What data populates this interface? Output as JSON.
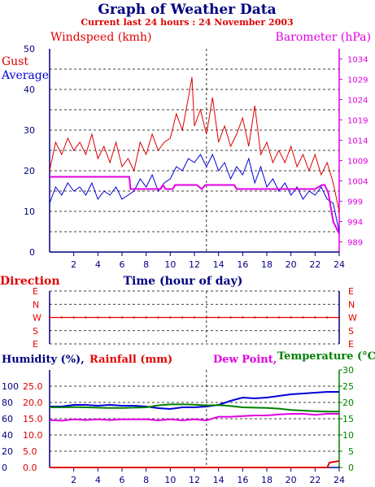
{
  "colors": {
    "navy": "#000080",
    "red": "#e00000",
    "blue": "#0000d8",
    "magenta": "#e000e0",
    "green": "#008000",
    "black": "#000000"
  },
  "header": {
    "title": "Graph of Weather Data",
    "subtitle": "Current last 24 hours : 24 November 2003"
  },
  "chart_data": [
    {
      "type": "line",
      "xlabel": "Time (hour of day)",
      "xlim": [
        0,
        24
      ],
      "x_ticks": [
        2,
        4,
        6,
        8,
        10,
        12,
        14,
        16,
        18,
        20,
        22,
        24
      ],
      "left_axis_title": "Windspeed (kmh)",
      "right_axis_title": "Barometer (hPa)",
      "left_ylim": [
        0,
        50
      ],
      "left_ticks": [
        0,
        10,
        20,
        30,
        40,
        50
      ],
      "right_ylim": [
        986.5,
        1036.5
      ],
      "right_ticks": [
        989,
        994,
        999,
        1004,
        1009,
        1014,
        1019,
        1024,
        1029,
        1034
      ],
      "legend": [
        "Gust",
        "Average"
      ],
      "grid": true,
      "series": [
        {
          "name": "Gust",
          "axis": "left",
          "x": [
            0.0,
            0.5,
            1.0,
            1.5,
            2.0,
            2.5,
            3.0,
            3.5,
            4.0,
            4.5,
            5.0,
            5.5,
            6.0,
            6.5,
            7.0,
            7.5,
            8.0,
            8.5,
            9.0,
            9.5,
            10.0,
            10.5,
            11.0,
            11.5,
            11.8,
            12.0,
            12.5,
            13.0,
            13.5,
            14.0,
            14.5,
            15.0,
            15.5,
            16.0,
            16.5,
            17.0,
            17.5,
            18.0,
            18.5,
            19.0,
            19.5,
            20.0,
            20.5,
            21.0,
            21.5,
            22.0,
            22.5,
            23.0,
            23.5,
            24.0
          ],
          "values": [
            20,
            27,
            24,
            28,
            25,
            27,
            24,
            29,
            23,
            26,
            22,
            27,
            21,
            23,
            20,
            27,
            24,
            29,
            25,
            27,
            28,
            34,
            30,
            38,
            43,
            31,
            35,
            29,
            38,
            27,
            31,
            26,
            29,
            33,
            26,
            36,
            24,
            27,
            22,
            25,
            22,
            26,
            21,
            24,
            20,
            24,
            19,
            22,
            17,
            10
          ]
        },
        {
          "name": "Average",
          "axis": "left",
          "x": [
            0.0,
            0.5,
            1.0,
            1.5,
            2.0,
            2.5,
            3.0,
            3.5,
            4.0,
            4.5,
            5.0,
            5.5,
            6.0,
            6.5,
            7.0,
            7.5,
            8.0,
            8.5,
            9.0,
            9.5,
            10.0,
            10.5,
            11.0,
            11.5,
            12.0,
            12.5,
            13.0,
            13.5,
            14.0,
            14.5,
            15.0,
            15.5,
            16.0,
            16.5,
            17.0,
            17.5,
            18.0,
            18.5,
            19.0,
            19.5,
            20.0,
            20.5,
            21.0,
            21.5,
            22.0,
            22.5,
            23.0,
            23.5,
            24.0
          ],
          "values": [
            12,
            16,
            14,
            17,
            15,
            16,
            14,
            17,
            13,
            15,
            14,
            16,
            13,
            14,
            15,
            18,
            16,
            19,
            15,
            17,
            18,
            21,
            20,
            23,
            22,
            24,
            21,
            24,
            20,
            22,
            18,
            21,
            19,
            23,
            17,
            21,
            16,
            18,
            15,
            17,
            14,
            16,
            13,
            15,
            14,
            16,
            13,
            12,
            5
          ]
        },
        {
          "name": "Barometer",
          "axis": "right",
          "x": [
            0,
            6.6,
            6.7,
            9.2,
            9.4,
            9.6,
            10.2,
            10.4,
            10.6,
            12.2,
            12.6,
            12.9,
            13.0,
            15.3,
            15.5,
            22.0,
            22.6,
            22.8,
            23.1,
            23.5,
            24.0
          ],
          "values": [
            1005,
            1005,
            1002,
            1002,
            1003,
            1002,
            1002,
            1003,
            1003,
            1003,
            1002,
            1003,
            1003,
            1003,
            1002,
            1002,
            1003,
            1003,
            1001,
            994,
            991
          ]
        }
      ]
    },
    {
      "type": "scatter",
      "title": "Direction",
      "xlim": [
        0,
        24
      ],
      "categories": [
        "E",
        "N",
        "W",
        "S",
        "E"
      ],
      "series": [
        {
          "name": "Direction",
          "x": [
            0,
            1,
            2,
            3,
            4,
            5,
            6,
            7,
            8,
            9,
            10,
            11,
            12,
            13,
            14,
            15,
            16,
            17,
            18,
            19,
            20,
            21,
            22,
            23,
            24
          ],
          "values": [
            "W",
            "W",
            "W",
            "W",
            "W",
            "W",
            "W",
            "W",
            "W",
            "W",
            "W",
            "W",
            "W",
            "W",
            "W",
            "W",
            "W",
            "W",
            "W",
            "W",
            "W",
            "W",
            "W",
            "W",
            "W"
          ]
        }
      ]
    },
    {
      "type": "line",
      "xlim": [
        0,
        24
      ],
      "x_ticks": [
        2,
        4,
        6,
        8,
        10,
        12,
        14,
        16,
        18,
        20,
        22,
        24
      ],
      "humidity_title": "Humidity (%),",
      "rainfall_title": "Rainfall (mm)",
      "dewpoint_title": "Dew Point,",
      "temperature_title": "Temperature (°C)",
      "humidity_ticks": [
        0,
        20,
        40,
        60,
        80,
        100
      ],
      "rainfall_ticks": [
        "0.0",
        "5.0",
        "10.0",
        "15.0",
        "20.0",
        "25.0"
      ],
      "temperature_ticks": [
        0,
        5,
        10,
        15,
        20,
        25,
        30
      ],
      "temperature_ylim": [
        0,
        30
      ],
      "grid": true,
      "series": [
        {
          "name": "Humidity",
          "unit": "%",
          "x": [
            0,
            1,
            2,
            3,
            4,
            5,
            6,
            7,
            8,
            9,
            10,
            11,
            12,
            13,
            14,
            15,
            16,
            17,
            18,
            19,
            20,
            21,
            22,
            23,
            24
          ],
          "values": [
            75,
            75,
            77,
            77,
            76,
            77,
            76,
            76,
            75,
            73,
            72,
            74,
            74,
            75,
            77,
            82,
            86,
            85,
            86,
            88,
            90,
            91,
            92,
            93,
            93
          ]
        },
        {
          "name": "Rainfall",
          "unit": "mm",
          "x": [
            0,
            23,
            23.2,
            24
          ],
          "values": [
            0,
            0,
            1.5,
            2.0
          ]
        },
        {
          "name": "Dew Point",
          "unit": "°C",
          "x": [
            0,
            1,
            2,
            3,
            4,
            5,
            6,
            7,
            8,
            9,
            10,
            11,
            12,
            13,
            14,
            15,
            16,
            17,
            18,
            19,
            20,
            21,
            22,
            23,
            24
          ],
          "values": [
            14.6,
            14.4,
            14.8,
            14.6,
            14.8,
            14.6,
            14.8,
            14.8,
            14.8,
            14.5,
            14.8,
            14.5,
            14.8,
            14.5,
            15.6,
            15.6,
            15.8,
            16,
            16,
            16.3,
            16.5,
            16.5,
            16.2,
            16.5,
            16.5
          ]
        },
        {
          "name": "Temperature",
          "unit": "°C",
          "x": [
            0,
            1,
            2,
            3,
            4,
            5,
            6,
            7,
            8,
            9,
            10,
            11,
            12,
            13,
            14,
            15,
            16,
            17,
            18,
            19,
            20,
            21,
            22,
            23,
            24
          ],
          "values": [
            18.5,
            18.5,
            18.6,
            18.5,
            18.4,
            18.3,
            18.3,
            18.4,
            18.5,
            19.1,
            19.4,
            19.4,
            19.3,
            19.1,
            19.2,
            18.9,
            18.5,
            18.4,
            18.3,
            18.1,
            17.7,
            17.5,
            17.3,
            17.2,
            17.2
          ]
        }
      ]
    }
  ]
}
